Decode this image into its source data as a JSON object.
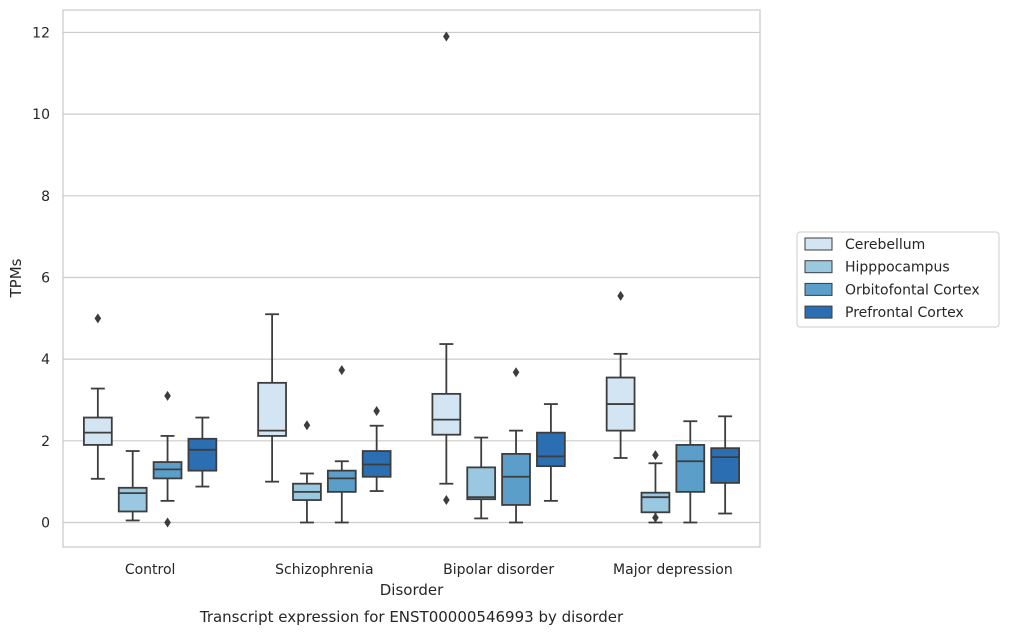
{
  "chart_data": {
    "type": "box",
    "caption": "Transcript expression for ENST00000546993 by disorder",
    "xlabel": "Disorder",
    "ylabel": "TPMs",
    "ylim": [
      -0.6,
      12.55
    ],
    "yticks": [
      0,
      2,
      4,
      6,
      8,
      10,
      12
    ],
    "grid": "horizontal",
    "legend_position": "right",
    "categories": [
      "Control",
      "Schizophrenia",
      "Bipolar disorder",
      "Major depression"
    ],
    "series": [
      {
        "name": "Cerebellum",
        "color": "#d3e4f3",
        "boxes": [
          {
            "whislo": 1.07,
            "q1": 1.9,
            "med": 2.2,
            "q3": 2.57,
            "whishi": 3.28,
            "fliers": [
              5.0
            ]
          },
          {
            "whislo": 1.0,
            "q1": 2.12,
            "med": 2.25,
            "q3": 3.42,
            "whishi": 5.1,
            "fliers": []
          },
          {
            "whislo": 0.95,
            "q1": 2.15,
            "med": 2.52,
            "q3": 3.15,
            "whishi": 4.37,
            "fliers": [
              0.55,
              11.9
            ]
          },
          {
            "whislo": 1.58,
            "q1": 2.25,
            "med": 2.9,
            "q3": 3.55,
            "whishi": 4.13,
            "fliers": [
              5.55
            ]
          }
        ]
      },
      {
        "name": "Hipppocampus",
        "color": "#9ac8e0",
        "boxes": [
          {
            "whislo": 0.05,
            "q1": 0.27,
            "med": 0.72,
            "q3": 0.85,
            "whishi": 1.75,
            "fliers": []
          },
          {
            "whislo": 0.0,
            "q1": 0.55,
            "med": 0.75,
            "q3": 0.95,
            "whishi": 1.2,
            "fliers": [
              2.38
            ]
          },
          {
            "whislo": 0.1,
            "q1": 0.57,
            "med": 0.62,
            "q3": 1.35,
            "whishi": 2.08,
            "fliers": []
          },
          {
            "whislo": 0.0,
            "q1": 0.25,
            "med": 0.62,
            "q3": 0.73,
            "whishi": 1.45,
            "fliers": [
              0.12,
              1.65
            ]
          }
        ]
      },
      {
        "name": "Orbitofontal Cortex",
        "color": "#5a9ec9",
        "boxes": [
          {
            "whislo": 0.53,
            "q1": 1.08,
            "med": 1.3,
            "q3": 1.48,
            "whishi": 2.12,
            "fliers": [
              0.0,
              3.1
            ]
          },
          {
            "whislo": 0.0,
            "q1": 0.75,
            "med": 1.08,
            "q3": 1.27,
            "whishi": 1.5,
            "fliers": [
              3.73
            ]
          },
          {
            "whislo": 0.0,
            "q1": 0.43,
            "med": 1.12,
            "q3": 1.68,
            "whishi": 2.25,
            "fliers": [
              3.68
            ]
          },
          {
            "whislo": 0.0,
            "q1": 0.75,
            "med": 1.5,
            "q3": 1.9,
            "whishi": 2.48,
            "fliers": []
          }
        ]
      },
      {
        "name": "Prefrontal Cortex",
        "color": "#2b6fb2",
        "boxes": [
          {
            "whislo": 0.88,
            "q1": 1.27,
            "med": 1.78,
            "q3": 2.05,
            "whishi": 2.57,
            "fliers": []
          },
          {
            "whislo": 0.77,
            "q1": 1.12,
            "med": 1.42,
            "q3": 1.75,
            "whishi": 2.37,
            "fliers": [
              2.73
            ]
          },
          {
            "whislo": 0.53,
            "q1": 1.38,
            "med": 1.62,
            "q3": 2.2,
            "whishi": 2.9,
            "fliers": []
          },
          {
            "whislo": 0.22,
            "q1": 0.97,
            "med": 1.6,
            "q3": 1.82,
            "whishi": 2.6,
            "fliers": []
          }
        ]
      }
    ]
  }
}
